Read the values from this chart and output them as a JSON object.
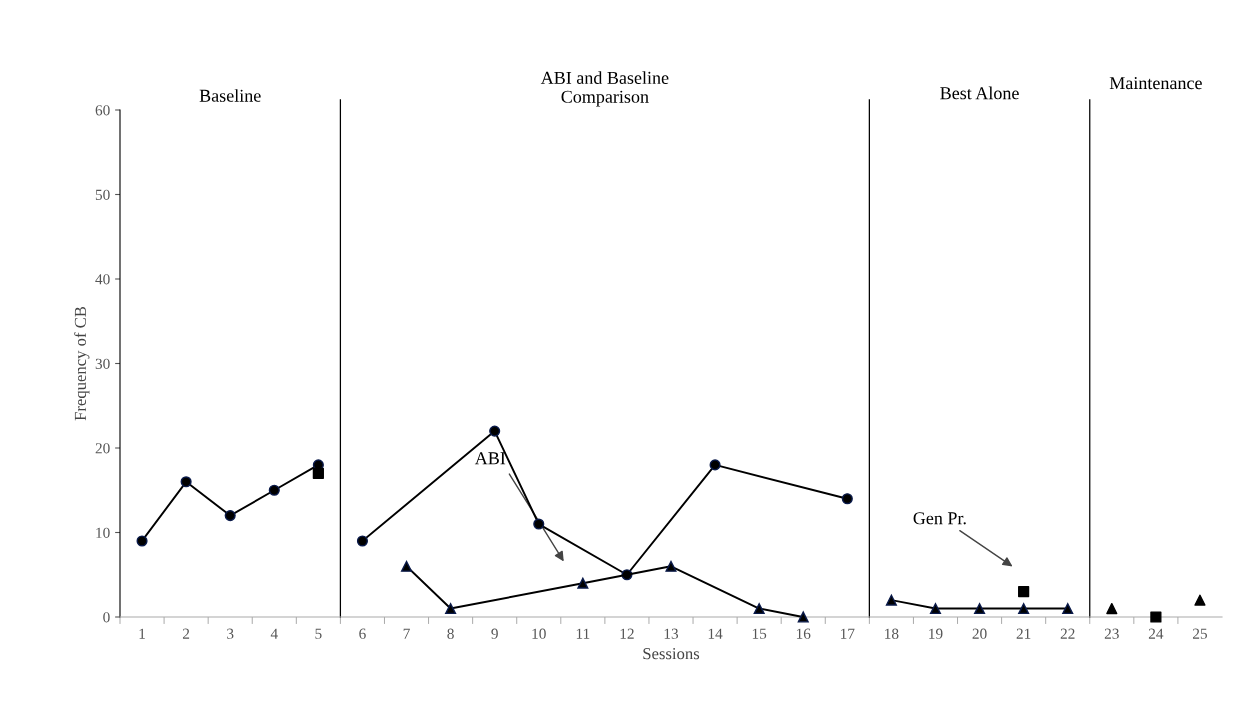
{
  "chart_data": {
    "type": "line",
    "xlabel": "Sessions",
    "ylabel": "Frequency of CB",
    "xlim": [
      0.5,
      25.5
    ],
    "xticks": [
      1,
      2,
      3,
      4,
      5,
      6,
      7,
      8,
      9,
      10,
      11,
      12,
      13,
      14,
      15,
      16,
      17,
      18,
      19,
      20,
      21,
      22,
      23,
      24,
      25
    ],
    "tick_labels": true,
    "ylim": [
      0,
      60
    ],
    "yticks": [
      0,
      10,
      20,
      30,
      40,
      50,
      60
    ],
    "grid": false,
    "series": [
      {
        "marker": "circle",
        "color": "#000000",
        "x": [
          1,
          2,
          3,
          4,
          5
        ],
        "values": [
          9,
          16,
          12,
          15,
          18
        ]
      },
      {
        "marker": "circle",
        "color": "#000000",
        "x": [
          6,
          9,
          10,
          12,
          14,
          17
        ],
        "values": [
          9,
          22,
          11,
          5,
          18,
          14
        ]
      },
      {
        "marker": "triangle",
        "color": "#000000",
        "x": [
          7,
          8,
          11,
          13,
          15,
          16
        ],
        "values": [
          6,
          1,
          4,
          6,
          1,
          0
        ]
      },
      {
        "marker": "triangle",
        "color": "#000000",
        "x": [
          18,
          19,
          20,
          21,
          22
        ],
        "values": [
          2,
          1,
          1,
          1,
          1
        ]
      },
      {
        "type": "scatter",
        "marker": "triangle",
        "color": "#000000",
        "x": [
          23,
          25
        ],
        "values": [
          1,
          2
        ]
      },
      {
        "type": "scatter",
        "marker": "square",
        "color": "#000000",
        "x": [
          5,
          21,
          24
        ],
        "values": [
          17,
          3,
          0
        ]
      }
    ],
    "ref_lines": [
      {
        "axis": "x",
        "value": 5.5,
        "color": "#000000"
      },
      {
        "axis": "x",
        "value": 17.5,
        "color": "#000000"
      },
      {
        "axis": "x",
        "value": 22.5,
        "color": "#000000"
      }
    ],
    "annotations": [
      "Baseline",
      "ABI and Baseline\nComparison",
      "Best Alone",
      "Maintenance",
      "ABI",
      "Gen Pr."
    ]
  }
}
